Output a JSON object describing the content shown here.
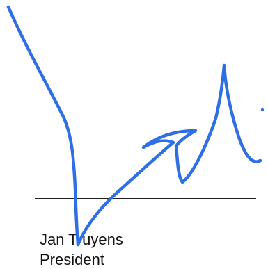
{
  "signer": {
    "name": "Jan Truyens",
    "title": "President"
  },
  "signature": {
    "ink_color": "#2f6fe4"
  }
}
